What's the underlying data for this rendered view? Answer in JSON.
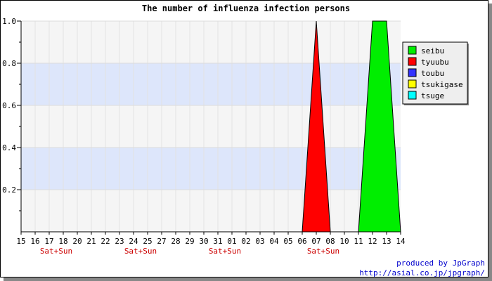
{
  "chart_data": {
    "type": "area",
    "title": "The number of influenza infection persons",
    "xlabel": "",
    "ylabel": "",
    "x_tick_labels": [
      "15",
      "16",
      "17",
      "18",
      "20",
      "21",
      "22",
      "23",
      "24",
      "25",
      "27",
      "28",
      "29",
      "30",
      "31",
      "01",
      "02",
      "03",
      "04",
      "05",
      "06",
      "07",
      "08",
      "10",
      "11",
      "12",
      "13",
      "14"
    ],
    "weekend_labels": [
      {
        "after_tick": "17",
        "text": "Sat+Sun"
      },
      {
        "after_tick": "24",
        "text": "Sat+Sun"
      },
      {
        "after_tick": "31",
        "text": "Sat+Sun"
      },
      {
        "after_tick": "07",
        "text": "Sat+Sun"
      }
    ],
    "ylim": [
      0,
      1.0
    ],
    "y_tick_labels": [
      "0.2",
      "0.4",
      "0.6",
      "0.8",
      "1.0"
    ],
    "y_ticks": [
      0.2,
      0.4,
      0.6,
      0.8,
      1.0
    ],
    "background_bands": [
      [
        0.2,
        0.4
      ],
      [
        0.6,
        0.8
      ]
    ],
    "legend_position": "right",
    "series": [
      {
        "name": "seibu",
        "color": "#00ee00",
        "values": [
          0,
          0,
          0,
          0,
          0,
          0,
          0,
          0,
          0,
          0,
          0,
          0,
          0,
          0,
          0,
          0,
          0,
          0,
          0,
          0,
          0,
          0,
          0,
          0,
          0,
          1,
          1,
          0
        ]
      },
      {
        "name": "tyuubu",
        "color": "#ff0000",
        "values": [
          0,
          0,
          0,
          0,
          0,
          0,
          0,
          0,
          0,
          0,
          0,
          0,
          0,
          0,
          0,
          0,
          0,
          0,
          0,
          0,
          0,
          1,
          0,
          0,
          0,
          0,
          0,
          0
        ]
      },
      {
        "name": "toubu",
        "color": "#3333ff",
        "values": [
          0,
          0,
          0,
          0,
          0,
          0,
          0,
          0,
          0,
          0,
          0,
          0,
          0,
          0,
          0,
          0,
          0,
          0,
          0,
          0,
          0,
          0,
          0,
          0,
          0,
          0,
          0,
          0
        ]
      },
      {
        "name": "tsukigase",
        "color": "#ffff00",
        "values": [
          0,
          0,
          0,
          0,
          0,
          0,
          0,
          0,
          0,
          0,
          0,
          0,
          0,
          0,
          0,
          0,
          0,
          0,
          0,
          0,
          0,
          0,
          0,
          0,
          0,
          0,
          0,
          0
        ]
      },
      {
        "name": "tsuge",
        "color": "#00ffff",
        "values": [
          0,
          0,
          0,
          0,
          0,
          0,
          0,
          0,
          0,
          0,
          0,
          0,
          0,
          0,
          0,
          0,
          0,
          0,
          0,
          0,
          0,
          0,
          0,
          0,
          0,
          0,
          0,
          0
        ]
      }
    ]
  },
  "credits": {
    "line1": "produced by JpGraph",
    "line2": "http://asial.co.jp/jpgraph/"
  }
}
